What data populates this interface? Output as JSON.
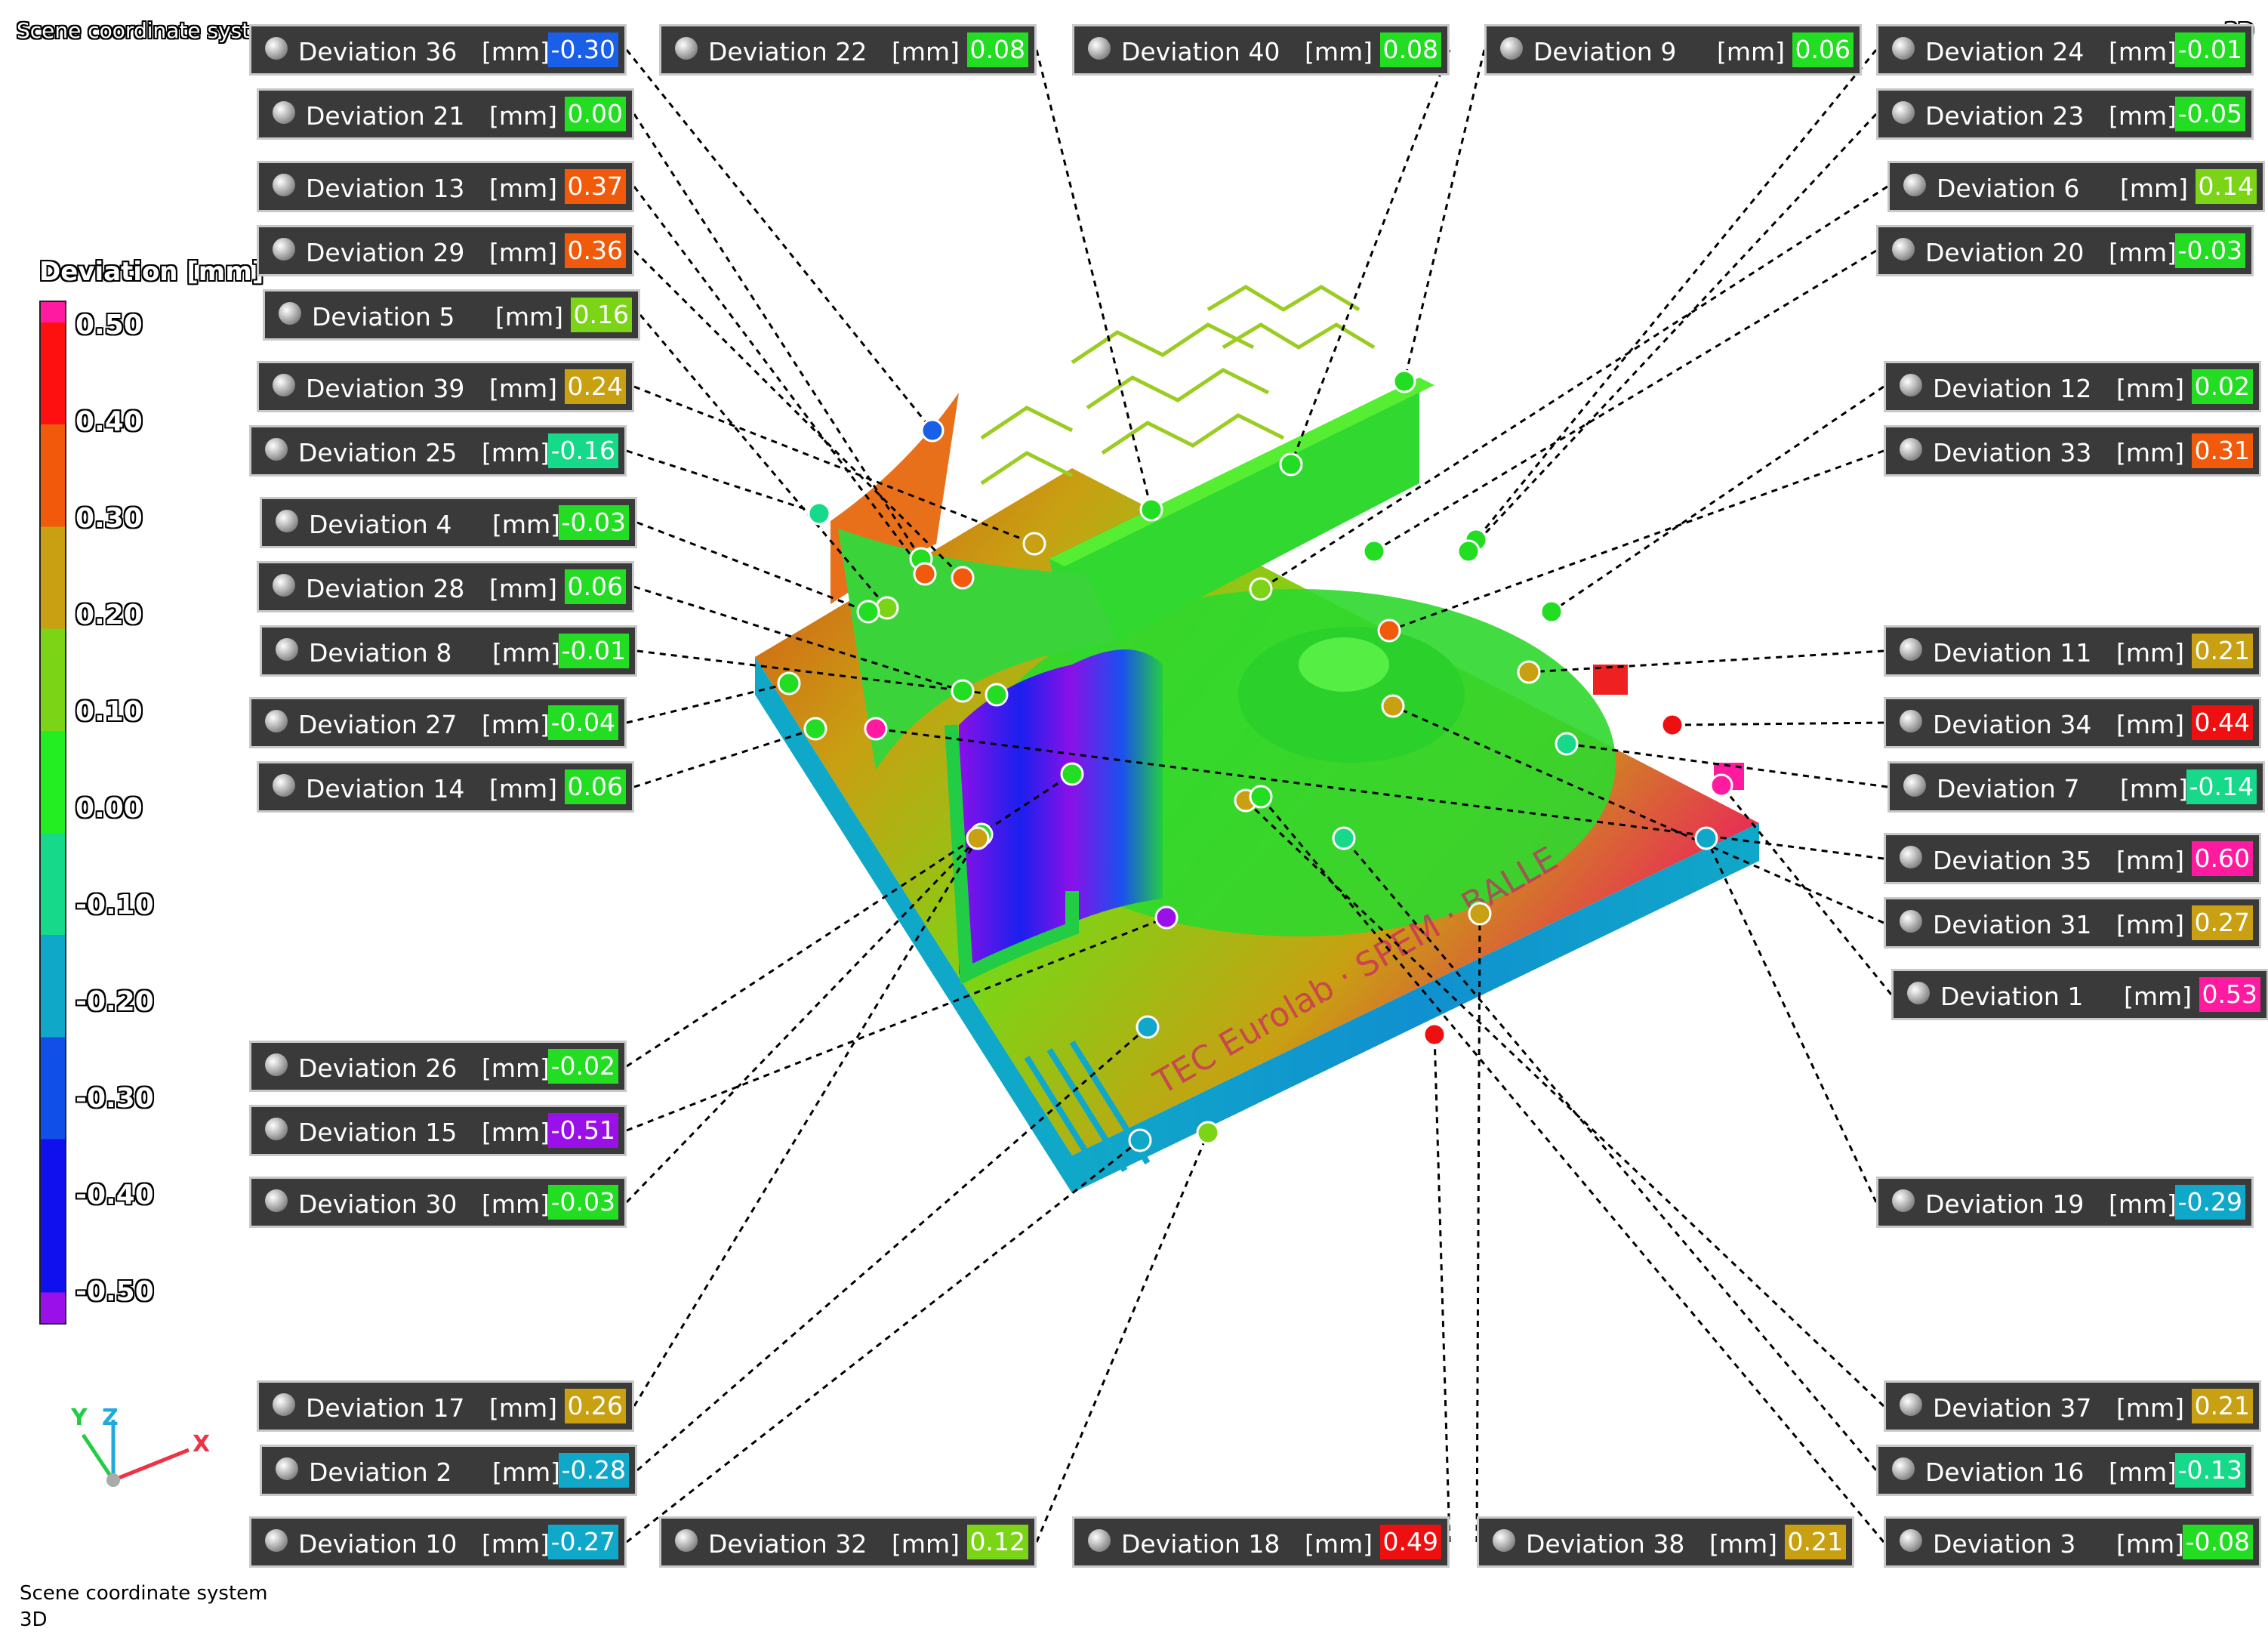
{
  "header": {
    "left_title": "Scene coordinate system",
    "right_title": "3D"
  },
  "legend": {
    "title": "Deviation [mm]",
    "ticks": [
      "0.50",
      "0.40",
      "0.30",
      "0.20",
      "0.10",
      "0.00",
      "-0.10",
      "-0.20",
      "-0.30",
      "-0.40",
      "-0.50"
    ]
  },
  "axes": {
    "x": "X",
    "y": "Y",
    "z": "Z"
  },
  "footer": {
    "line1": "Scene coordinate system",
    "line2": "3D"
  },
  "unit": "[mm]",
  "labels": [
    {
      "name": "Deviation 36",
      "value": "-0.30",
      "color": "#1a5fe8"
    },
    {
      "name": "Deviation 22",
      "value": "0.08",
      "color": "#22dd22"
    },
    {
      "name": "Deviation 40",
      "value": "0.08",
      "color": "#22dd22"
    },
    {
      "name": "Deviation 9",
      "value": "0.06",
      "color": "#22dd22"
    },
    {
      "name": "Deviation 24",
      "value": "-0.01",
      "color": "#22dd22"
    },
    {
      "name": "Deviation 21",
      "value": "0.00",
      "color": "#22dd22"
    },
    {
      "name": "Deviation 23",
      "value": "-0.05",
      "color": "#22dd22"
    },
    {
      "name": "Deviation 13",
      "value": "0.37",
      "color": "#f05a0a"
    },
    {
      "name": "Deviation 6",
      "value": "0.14",
      "color": "#7cd416"
    },
    {
      "name": "Deviation 29",
      "value": "0.36",
      "color": "#f05a0a"
    },
    {
      "name": "Deviation 20",
      "value": "-0.03",
      "color": "#22dd22"
    },
    {
      "name": "Deviation 5",
      "value": "0.16",
      "color": "#7cd416"
    },
    {
      "name": "Deviation 39",
      "value": "0.24",
      "color": "#c8a012"
    },
    {
      "name": "Deviation 12",
      "value": "0.02",
      "color": "#22dd22"
    },
    {
      "name": "Deviation 25",
      "value": "-0.16",
      "color": "#16d98a"
    },
    {
      "name": "Deviation 33",
      "value": "0.31",
      "color": "#f05a0a"
    },
    {
      "name": "Deviation 4",
      "value": "-0.03",
      "color": "#22dd22"
    },
    {
      "name": "Deviation 28",
      "value": "0.06",
      "color": "#22dd22"
    },
    {
      "name": "Deviation 8",
      "value": "-0.01",
      "color": "#22dd22"
    },
    {
      "name": "Deviation 11",
      "value": "0.21",
      "color": "#c8a012"
    },
    {
      "name": "Deviation 27",
      "value": "-0.04",
      "color": "#22dd22"
    },
    {
      "name": "Deviation 34",
      "value": "0.44",
      "color": "#ee1010"
    },
    {
      "name": "Deviation 14",
      "value": "0.06",
      "color": "#22dd22"
    },
    {
      "name": "Deviation 7",
      "value": "-0.14",
      "color": "#16d98a"
    },
    {
      "name": "Deviation 35",
      "value": "0.60",
      "color": "#ff1aa0"
    },
    {
      "name": "Deviation 31",
      "value": "0.27",
      "color": "#c8a012"
    },
    {
      "name": "Deviation 1",
      "value": "0.53",
      "color": "#ff1aa0"
    },
    {
      "name": "Deviation 26",
      "value": "-0.02",
      "color": "#22dd22"
    },
    {
      "name": "Deviation 15",
      "value": "-0.51",
      "color": "#9a10e8"
    },
    {
      "name": "Deviation 30",
      "value": "-0.03",
      "color": "#22dd22"
    },
    {
      "name": "Deviation 19",
      "value": "-0.29",
      "color": "#10a8c8"
    },
    {
      "name": "Deviation 17",
      "value": "0.26",
      "color": "#c8a012"
    },
    {
      "name": "Deviation 37",
      "value": "0.21",
      "color": "#c8a012"
    },
    {
      "name": "Deviation 2",
      "value": "-0.28",
      "color": "#10a8c8"
    },
    {
      "name": "Deviation 16",
      "value": "-0.13",
      "color": "#16d98a"
    },
    {
      "name": "Deviation 10",
      "value": "-0.27",
      "color": "#10a8c8"
    },
    {
      "name": "Deviation 32",
      "value": "0.12",
      "color": "#7cd416"
    },
    {
      "name": "Deviation 18",
      "value": "0.49",
      "color": "#ee1010"
    },
    {
      "name": "Deviation 38",
      "value": "0.21",
      "color": "#c8a012"
    },
    {
      "name": "Deviation 3",
      "value": "-0.08",
      "color": "#22dd22"
    }
  ]
}
